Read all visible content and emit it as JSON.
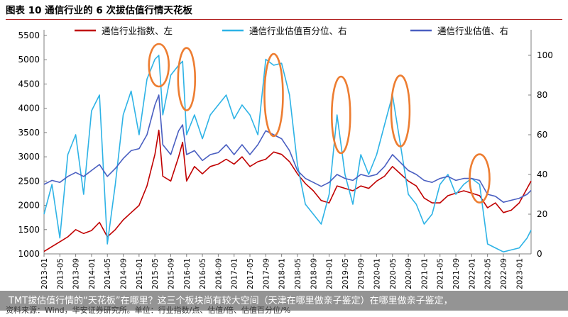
{
  "figure_title": "图表 10  通信行业的 6 次拔估值行情天花板",
  "source": "资料来源：Wind，华安证券研究所。单位：行业指数/点、估值/倍、估值百分位/%",
  "caption": "TMT拔估值行情的“天花板”在哪里？这三个板块尚有较大空间（天津在哪里做亲子鉴定）在哪里做亲子鉴定，",
  "colors": {
    "index": "#c00000",
    "percentile": "#2eb3e6",
    "valuation": "#4a5fc1",
    "highlight": "#ed7d31",
    "axis": "#7f7f7f"
  },
  "chart_data": {
    "type": "line",
    "title": "",
    "legend_position": "top",
    "grid": false,
    "y_left": {
      "label": "",
      "ticks": [
        1000,
        1500,
        2000,
        2500,
        3000,
        3500,
        4000,
        4500,
        5000,
        5500
      ],
      "range": [
        1000,
        5500
      ]
    },
    "y_right": {
      "label": "",
      "ticks": [
        0,
        20,
        40,
        60,
        80,
        100
      ],
      "range": [
        0,
        110
      ]
    },
    "x": {
      "start": "2013-01",
      "end": "2023-04",
      "tick_labels": [
        "2013-01",
        "2013-05",
        "2013-09",
        "2014-01",
        "2014-05",
        "2014-09",
        "2015-01",
        "2015-05",
        "2015-09",
        "2016-01",
        "2016-05",
        "2016-09",
        "2017-01",
        "2017-05",
        "2017-09",
        "2018-01",
        "2018-05",
        "2018-09",
        "2019-01",
        "2019-05",
        "2019-09",
        "2020-01",
        "2020-05",
        "2020-09",
        "2021-01",
        "2021-05",
        "2021-09",
        "2022-01",
        "2022-05",
        "2022-09",
        "2023-01"
      ]
    },
    "series": [
      {
        "name": "通信行业指数、左",
        "axis": "left",
        "color_key": "index",
        "points": [
          [
            "2013-01",
            1050
          ],
          [
            "2013-03",
            1150
          ],
          [
            "2013-05",
            1250
          ],
          [
            "2013-07",
            1350
          ],
          [
            "2013-09",
            1500
          ],
          [
            "2013-11",
            1420
          ],
          [
            "2014-01",
            1480
          ],
          [
            "2014-03",
            1650
          ],
          [
            "2014-05",
            1350
          ],
          [
            "2014-07",
            1500
          ],
          [
            "2014-09",
            1700
          ],
          [
            "2014-11",
            1850
          ],
          [
            "2015-01",
            2000
          ],
          [
            "2015-03",
            2400
          ],
          [
            "2015-05",
            3050
          ],
          [
            "2015-06",
            3550
          ],
          [
            "2015-07",
            2600
          ],
          [
            "2015-09",
            2500
          ],
          [
            "2015-11",
            3000
          ],
          [
            "2015-12",
            3300
          ],
          [
            "2016-01",
            2500
          ],
          [
            "2016-03",
            2800
          ],
          [
            "2016-05",
            2650
          ],
          [
            "2016-07",
            2800
          ],
          [
            "2016-09",
            2850
          ],
          [
            "2016-11",
            2950
          ],
          [
            "2017-01",
            2850
          ],
          [
            "2017-03",
            3000
          ],
          [
            "2017-05",
            2800
          ],
          [
            "2017-07",
            2900
          ],
          [
            "2017-09",
            2950
          ],
          [
            "2017-11",
            3100
          ],
          [
            "2018-01",
            3050
          ],
          [
            "2018-03",
            2900
          ],
          [
            "2018-05",
            2650
          ],
          [
            "2018-07",
            2450
          ],
          [
            "2018-09",
            2300
          ],
          [
            "2018-11",
            2100
          ],
          [
            "2019-01",
            2050
          ],
          [
            "2019-03",
            2400
          ],
          [
            "2019-05",
            2350
          ],
          [
            "2019-07",
            2300
          ],
          [
            "2019-09",
            2400
          ],
          [
            "2019-11",
            2350
          ],
          [
            "2020-01",
            2500
          ],
          [
            "2020-03",
            2600
          ],
          [
            "2020-05",
            2800
          ],
          [
            "2020-07",
            2650
          ],
          [
            "2020-09",
            2500
          ],
          [
            "2020-11",
            2400
          ],
          [
            "2021-01",
            2150
          ],
          [
            "2021-03",
            2050
          ],
          [
            "2021-05",
            2050
          ],
          [
            "2021-07",
            2200
          ],
          [
            "2021-09",
            2250
          ],
          [
            "2021-11",
            2300
          ],
          [
            "2022-01",
            2250
          ],
          [
            "2022-03",
            2200
          ],
          [
            "2022-05",
            1950
          ],
          [
            "2022-07",
            2050
          ],
          [
            "2022-09",
            1850
          ],
          [
            "2022-11",
            1900
          ],
          [
            "2023-01",
            2050
          ],
          [
            "2023-03",
            2350
          ],
          [
            "2023-04",
            2500
          ]
        ]
      },
      {
        "name": "通信行业估值百分位、右",
        "axis": "right",
        "color_key": "percentile",
        "points": [
          [
            "2013-01",
            20
          ],
          [
            "2013-03",
            35
          ],
          [
            "2013-05",
            8
          ],
          [
            "2013-07",
            50
          ],
          [
            "2013-09",
            60
          ],
          [
            "2013-11",
            30
          ],
          [
            "2014-01",
            72
          ],
          [
            "2014-03",
            80
          ],
          [
            "2014-05",
            5
          ],
          [
            "2014-07",
            35
          ],
          [
            "2014-09",
            70
          ],
          [
            "2014-11",
            82
          ],
          [
            "2015-01",
            60
          ],
          [
            "2015-03",
            88
          ],
          [
            "2015-05",
            98
          ],
          [
            "2015-06",
            100
          ],
          [
            "2015-07",
            70
          ],
          [
            "2015-09",
            90
          ],
          [
            "2015-11",
            95
          ],
          [
            "2015-12",
            97
          ],
          [
            "2016-01",
            60
          ],
          [
            "2016-03",
            70
          ],
          [
            "2016-05",
            58
          ],
          [
            "2016-07",
            70
          ],
          [
            "2016-09",
            75
          ],
          [
            "2016-11",
            80
          ],
          [
            "2017-01",
            68
          ],
          [
            "2017-03",
            75
          ],
          [
            "2017-05",
            70
          ],
          [
            "2017-07",
            60
          ],
          [
            "2017-09",
            98
          ],
          [
            "2017-11",
            95
          ],
          [
            "2018-01",
            96
          ],
          [
            "2018-03",
            80
          ],
          [
            "2018-05",
            45
          ],
          [
            "2018-07",
            25
          ],
          [
            "2018-09",
            20
          ],
          [
            "2018-11",
            15
          ],
          [
            "2019-01",
            30
          ],
          [
            "2019-03",
            70
          ],
          [
            "2019-05",
            40
          ],
          [
            "2019-07",
            25
          ],
          [
            "2019-09",
            50
          ],
          [
            "2019-11",
            40
          ],
          [
            "2020-01",
            50
          ],
          [
            "2020-03",
            65
          ],
          [
            "2020-05",
            80
          ],
          [
            "2020-07",
            55
          ],
          [
            "2020-09",
            30
          ],
          [
            "2020-11",
            25
          ],
          [
            "2021-01",
            15
          ],
          [
            "2021-03",
            20
          ],
          [
            "2021-05",
            35
          ],
          [
            "2021-07",
            40
          ],
          [
            "2021-09",
            30
          ],
          [
            "2021-11",
            35
          ],
          [
            "2022-01",
            38
          ],
          [
            "2022-03",
            35
          ],
          [
            "2022-05",
            5
          ],
          [
            "2022-07",
            3
          ],
          [
            "2022-09",
            1
          ],
          [
            "2022-11",
            2
          ],
          [
            "2023-01",
            3
          ],
          [
            "2023-03",
            8
          ],
          [
            "2023-04",
            12
          ]
        ]
      },
      {
        "name": "通信行业估值、右",
        "axis": "right",
        "color_key": "valuation",
        "points": [
          [
            "2013-01",
            35
          ],
          [
            "2013-03",
            37
          ],
          [
            "2013-05",
            36
          ],
          [
            "2013-07",
            39
          ],
          [
            "2013-09",
            41
          ],
          [
            "2013-11",
            39
          ],
          [
            "2014-01",
            42
          ],
          [
            "2014-03",
            45
          ],
          [
            "2014-05",
            39
          ],
          [
            "2014-07",
            43
          ],
          [
            "2014-09",
            48
          ],
          [
            "2014-11",
            52
          ],
          [
            "2015-01",
            53
          ],
          [
            "2015-03",
            60
          ],
          [
            "2015-05",
            75
          ],
          [
            "2015-06",
            80
          ],
          [
            "2015-07",
            55
          ],
          [
            "2015-09",
            50
          ],
          [
            "2015-11",
            62
          ],
          [
            "2015-12",
            65
          ],
          [
            "2016-01",
            50
          ],
          [
            "2016-03",
            52
          ],
          [
            "2016-05",
            47
          ],
          [
            "2016-07",
            50
          ],
          [
            "2016-09",
            51
          ],
          [
            "2016-11",
            55
          ],
          [
            "2017-01",
            50
          ],
          [
            "2017-03",
            55
          ],
          [
            "2017-05",
            50
          ],
          [
            "2017-07",
            55
          ],
          [
            "2017-09",
            62
          ],
          [
            "2017-11",
            60
          ],
          [
            "2018-01",
            58
          ],
          [
            "2018-03",
            52
          ],
          [
            "2018-05",
            42
          ],
          [
            "2018-07",
            38
          ],
          [
            "2018-09",
            36
          ],
          [
            "2018-11",
            34
          ],
          [
            "2019-01",
            36
          ],
          [
            "2019-03",
            40
          ],
          [
            "2019-05",
            38
          ],
          [
            "2019-07",
            37
          ],
          [
            "2019-09",
            40
          ],
          [
            "2019-11",
            39
          ],
          [
            "2020-01",
            40
          ],
          [
            "2020-03",
            44
          ],
          [
            "2020-05",
            50
          ],
          [
            "2020-07",
            46
          ],
          [
            "2020-09",
            42
          ],
          [
            "2020-11",
            40
          ],
          [
            "2021-01",
            37
          ],
          [
            "2021-03",
            36
          ],
          [
            "2021-05",
            38
          ],
          [
            "2021-07",
            39
          ],
          [
            "2021-09",
            37
          ],
          [
            "2021-11",
            38
          ],
          [
            "2022-01",
            38
          ],
          [
            "2022-03",
            37
          ],
          [
            "2022-05",
            30
          ],
          [
            "2022-07",
            29
          ],
          [
            "2022-09",
            26
          ],
          [
            "2022-11",
            27
          ],
          [
            "2023-01",
            28
          ],
          [
            "2023-03",
            30
          ],
          [
            "2023-04",
            32
          ]
        ]
      }
    ],
    "highlights": [
      "2015-06",
      "2016-01",
      "2017-11",
      "2019-04",
      "2020-07",
      "2022-03"
    ]
  }
}
